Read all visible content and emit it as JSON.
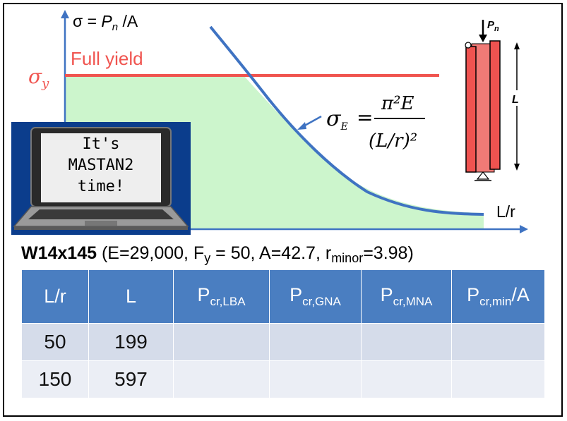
{
  "diagram": {
    "y_axis_label": {
      "prefix": "σ = ",
      "pn": "P",
      "pn_sub": "n",
      "suffix": " /A"
    },
    "x_axis_label": "L/r",
    "full_yield_label": "Full yield",
    "sigma_y_label": {
      "sym": "σ",
      "sub": "y"
    },
    "euler_formula": {
      "lhs": "σ",
      "lhs_sub": "E",
      "eq": "=",
      "num": "π²E",
      "den": "(L/r)²"
    },
    "column_load_label": {
      "p": "P",
      "sub": "n"
    },
    "column_length_label": "L",
    "colors": {
      "yield_line": "#f0544f",
      "euler_curve": "#3f73c2",
      "fill": "#ccf5cc",
      "axis": "#3f73c2",
      "column": "#ef5350",
      "laptop_bg": "#0b3d8c"
    }
  },
  "laptop_sign": {
    "line1": "It's",
    "line2": "MASTAN2",
    "line3": "time!"
  },
  "caption": {
    "section": "W14x145",
    "part1": " (E=29,000, F",
    "fy_sub": "y",
    "part2": " = 50, A=42.7, r",
    "r_sub": "minor",
    "part3": "=3.98)"
  },
  "table": {
    "headers": [
      {
        "main": "L/r",
        "sub": "",
        "tail": ""
      },
      {
        "main": "L",
        "sub": "",
        "tail": ""
      },
      {
        "main": "P",
        "sub": "cr,LBA",
        "tail": ""
      },
      {
        "main": "P",
        "sub": "cr,GNA",
        "tail": ""
      },
      {
        "main": "P",
        "sub": "cr,MNA",
        "tail": ""
      },
      {
        "main": "P",
        "sub": "cr,min",
        "tail": "/A"
      }
    ],
    "rows": [
      [
        "50",
        "199",
        "",
        "",
        "",
        ""
      ],
      [
        "150",
        "597",
        "",
        "",
        "",
        ""
      ]
    ]
  }
}
